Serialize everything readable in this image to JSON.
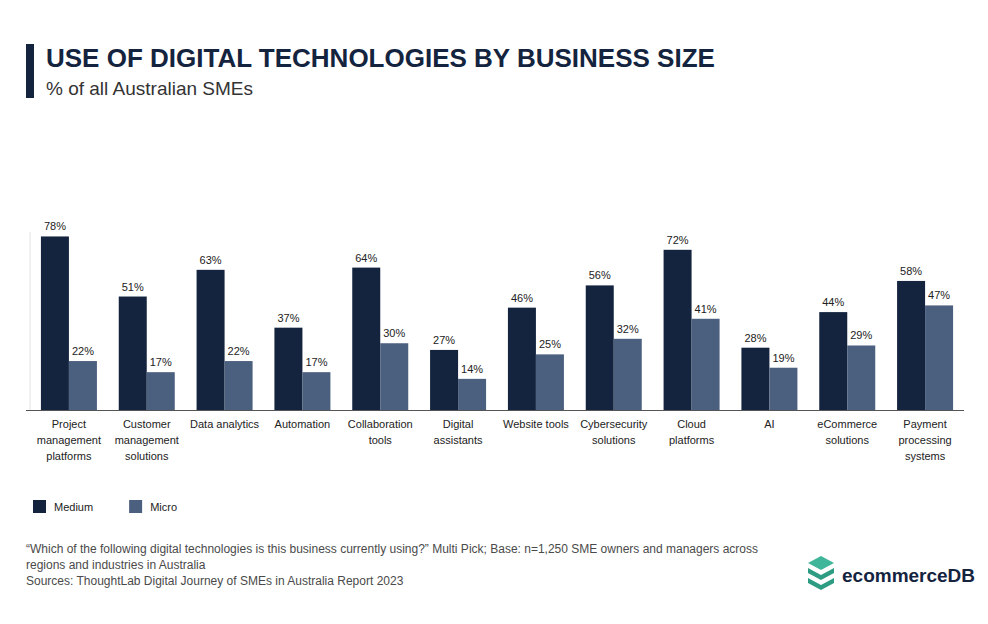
{
  "chart_data": {
    "type": "bar",
    "title": "USE OF DIGITAL TECHNOLOGIES BY BUSINESS SIZE",
    "subtitle": "% of all Australian SMEs",
    "categories": [
      "Project management platforms",
      "Customer management solutions",
      "Data analytics",
      "Automation",
      "Collaboration tools",
      "Digital assistants",
      "Website tools",
      "Cybersecurity solutions",
      "Cloud platforms",
      "AI",
      "eCommerce solutions",
      "Payment processing systems"
    ],
    "series": [
      {
        "name": "Medium",
        "color": "#14243f",
        "values": [
          78,
          51,
          63,
          37,
          64,
          27,
          46,
          56,
          72,
          28,
          44,
          58
        ],
        "value_labels": [
          "78%",
          "51%",
          "63%",
          "37%",
          "64%",
          "27%",
          "46%",
          "56%",
          "72%",
          "28%",
          "44%",
          "58%"
        ]
      },
      {
        "name": "Micro",
        "color": "#4b5f7e",
        "values": [
          22,
          17,
          22,
          17,
          30,
          14,
          25,
          32,
          41,
          19,
          29,
          47
        ],
        "value_labels": [
          "22%",
          "17%",
          "22%",
          "17%",
          "30%",
          "14%",
          "25%",
          "32%",
          "41%",
          "19%",
          "29%",
          "47%"
        ]
      }
    ],
    "ylim": [
      0,
      80
    ],
    "data_labels": true,
    "tick_labels": "x",
    "grid": false,
    "legend": "bottom-left",
    "note": "“Which of the following digital technologies is this business currently using?” Multi Pick; Base: n=1,250 SME owners and managers across regions and industries in Australia",
    "source": "Sources: ThoughtLab Digital Journey of SMEs in Australia Report 2023",
    "brand": "ecommerceDB"
  }
}
